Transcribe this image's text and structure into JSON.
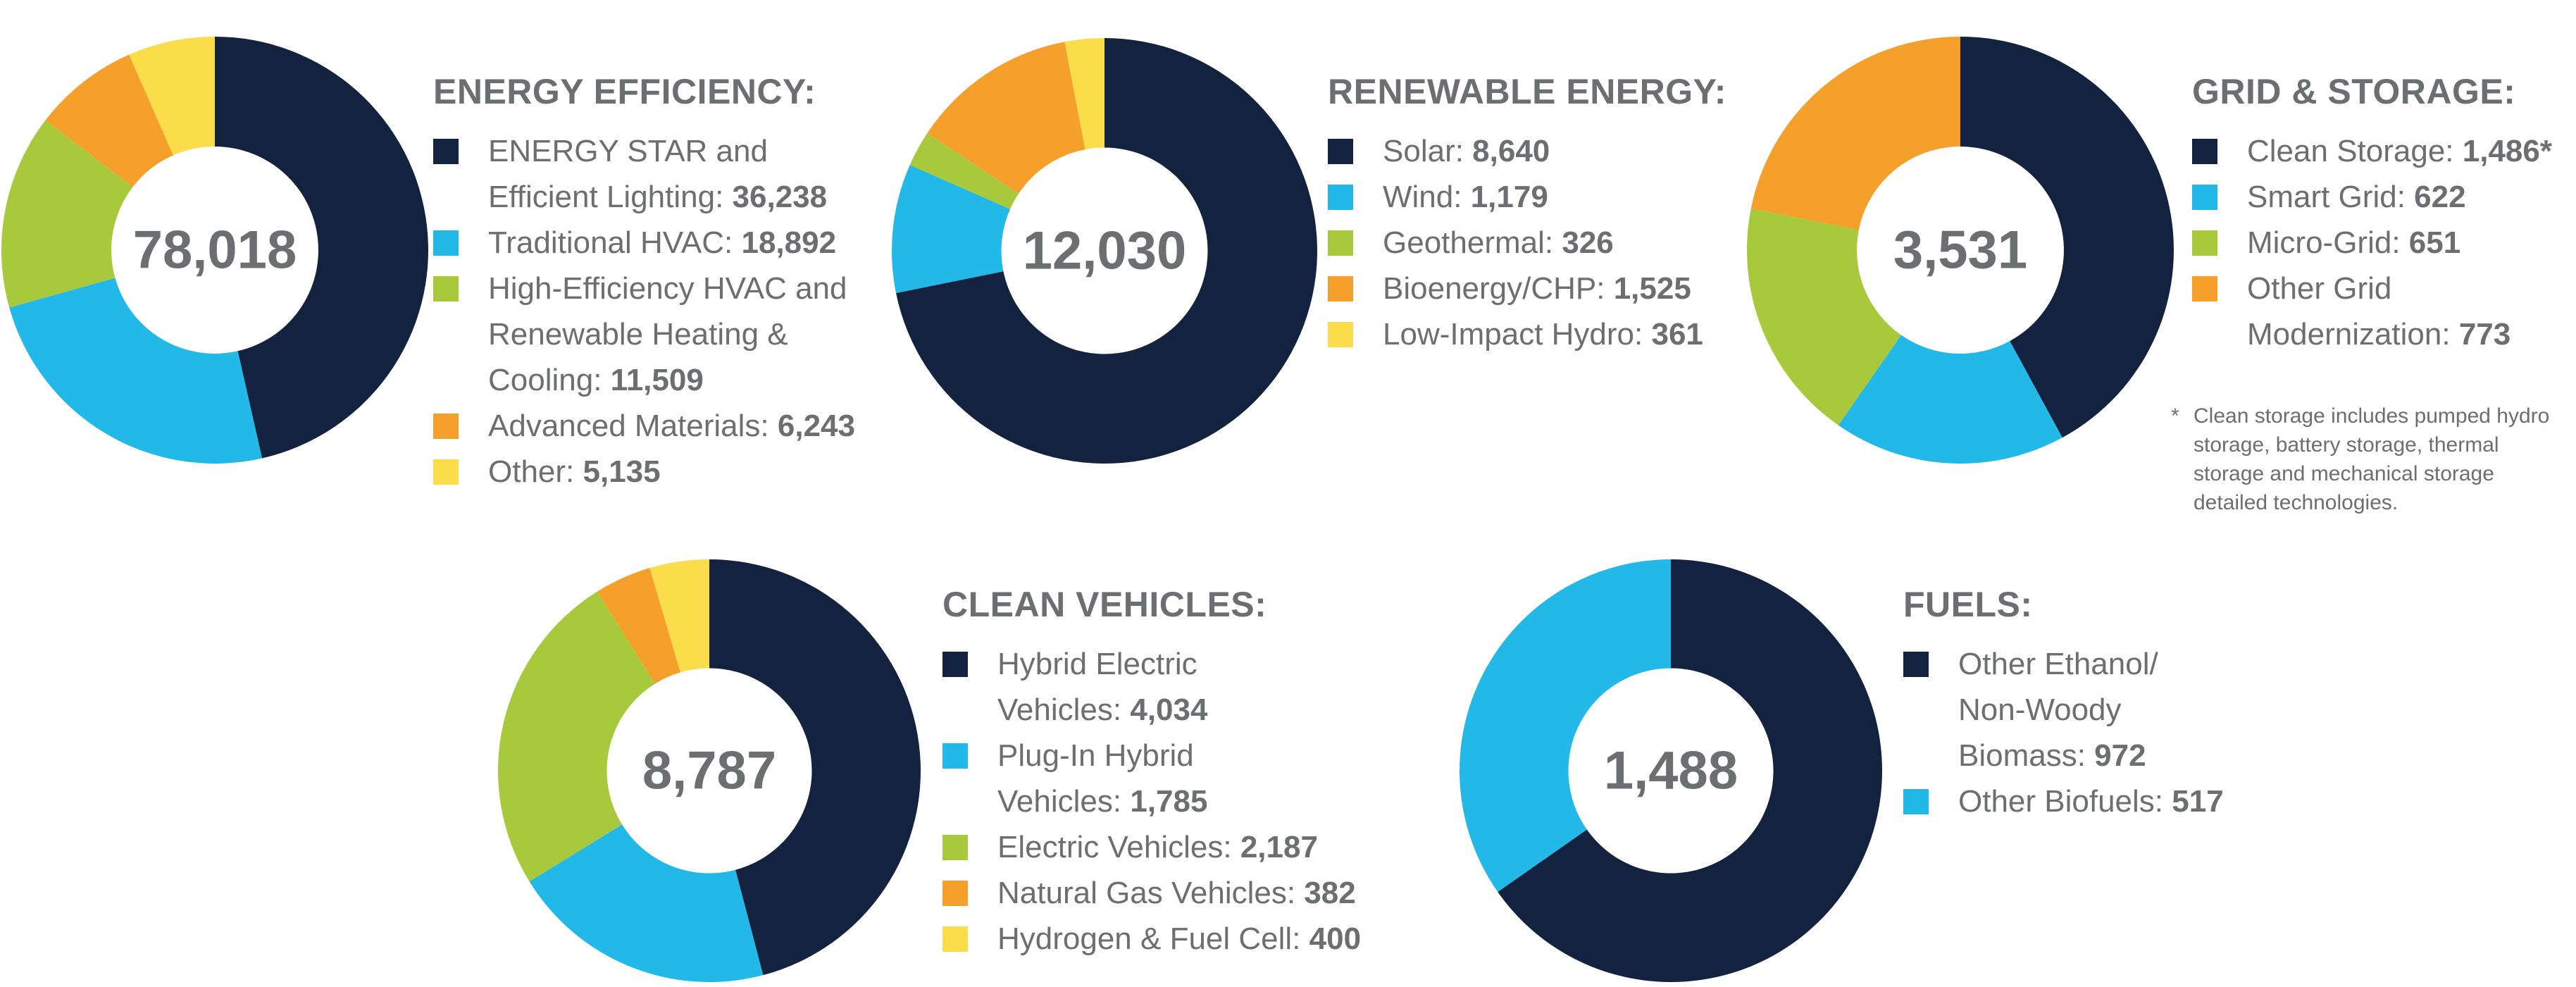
{
  "colors": {
    "navy": "#13223f",
    "sky": "#22b8e8",
    "lime": "#a8c93c",
    "orange": "#f5a02a",
    "yellow": "#fbdc4b",
    "text": "#6d6e71"
  },
  "chart_data": [
    {
      "type": "pie",
      "variant": "donut",
      "title": "ENERGY EFFICIENCY:",
      "total_label": "78,018",
      "categories": [
        "ENERGY STAR and Efficient Lighting",
        "Traditional HVAC",
        "High-Efficiency HVAC and Renewable Heating & Cooling",
        "Advanced Materials",
        "Other"
      ],
      "values": [
        36238,
        18892,
        11509,
        6243,
        5135
      ],
      "color_keys": [
        "navy",
        "sky",
        "lime",
        "orange",
        "yellow"
      ],
      "legend": [
        {
          "label": "ENERGY STAR and Efficient Lighting: ",
          "value": "36,238"
        },
        {
          "label": "Traditional HVAC: ",
          "value": "18,892"
        },
        {
          "label": "High-Efficiency HVAC and Renewable Heating & Cooling: ",
          "value": "11,509"
        },
        {
          "label": "Advanced Materials: ",
          "value": "6,243"
        },
        {
          "label": "Other: ",
          "value": "5,135"
        }
      ]
    },
    {
      "type": "pie",
      "variant": "donut",
      "title": "RENEWABLE ENERGY:",
      "total_label": "12,030",
      "categories": [
        "Solar",
        "Wind",
        "Geothermal",
        "Bioenergy/CHP",
        "Low-Impact Hydro"
      ],
      "values": [
        8640,
        1179,
        326,
        1525,
        361
      ],
      "color_keys": [
        "navy",
        "sky",
        "lime",
        "orange",
        "yellow"
      ],
      "legend": [
        {
          "label": "Solar: ",
          "value": "8,640"
        },
        {
          "label": "Wind: ",
          "value": "1,179"
        },
        {
          "label": "Geothermal: ",
          "value": "326"
        },
        {
          "label": "Bioenergy/CHP: ",
          "value": "1,525"
        },
        {
          "label": "Low-Impact Hydro: ",
          "value": "361"
        }
      ]
    },
    {
      "type": "pie",
      "variant": "donut",
      "title": "GRID & STORAGE:",
      "total_label": "3,531",
      "categories": [
        "Clean Storage",
        "Smart Grid",
        "Micro-Grid",
        "Other Grid Modernization"
      ],
      "values": [
        1486,
        622,
        651,
        773
      ],
      "color_keys": [
        "navy",
        "sky",
        "lime",
        "orange"
      ],
      "legend": [
        {
          "label": "Clean Storage: ",
          "value": "1,486*"
        },
        {
          "label": "Smart Grid: ",
          "value": "622"
        },
        {
          "label": "Micro-Grid: ",
          "value": "651"
        },
        {
          "label": "Other Grid Modernization: ",
          "value": "773"
        }
      ],
      "footnote_mark": "*",
      "footnote": "Clean storage includes pumped hydro storage, battery storage, thermal storage and mechanical storage detailed technologies."
    },
    {
      "type": "pie",
      "variant": "donut",
      "title": "CLEAN VEHICLES:",
      "total_label": "8,787",
      "categories": [
        "Hybrid Electric Vehicles",
        "Plug-In Hybrid Vehicles",
        "Electric Vehicles",
        "Natural Gas Vehicles",
        "Hydrogen & Fuel Cell"
      ],
      "values": [
        4034,
        1785,
        2187,
        382,
        400
      ],
      "color_keys": [
        "navy",
        "sky",
        "lime",
        "orange",
        "yellow"
      ],
      "legend": [
        {
          "label": "Hybrid Electric Vehicles: ",
          "value": "4,034"
        },
        {
          "label": "Plug-In Hybrid Vehicles: ",
          "value": "1,785"
        },
        {
          "label": "Electric Vehicles: ",
          "value": "2,187"
        },
        {
          "label": "Natural Gas Vehicles: ",
          "value": "382"
        },
        {
          "label": "Hydrogen & Fuel Cell: ",
          "value": "400"
        }
      ]
    },
    {
      "type": "pie",
      "variant": "donut",
      "title": "FUELS:",
      "total_label": "1,488",
      "categories": [
        "Other Ethanol/ Non-Woody Biomass",
        "Other Biofuels"
      ],
      "values": [
        972,
        517
      ],
      "color_keys": [
        "navy",
        "sky"
      ],
      "legend": [
        {
          "label": "Other Ethanol/ Non-Woody Biomass: ",
          "value": "972"
        },
        {
          "label": "Other Biofuels: ",
          "value": "517"
        }
      ]
    }
  ]
}
